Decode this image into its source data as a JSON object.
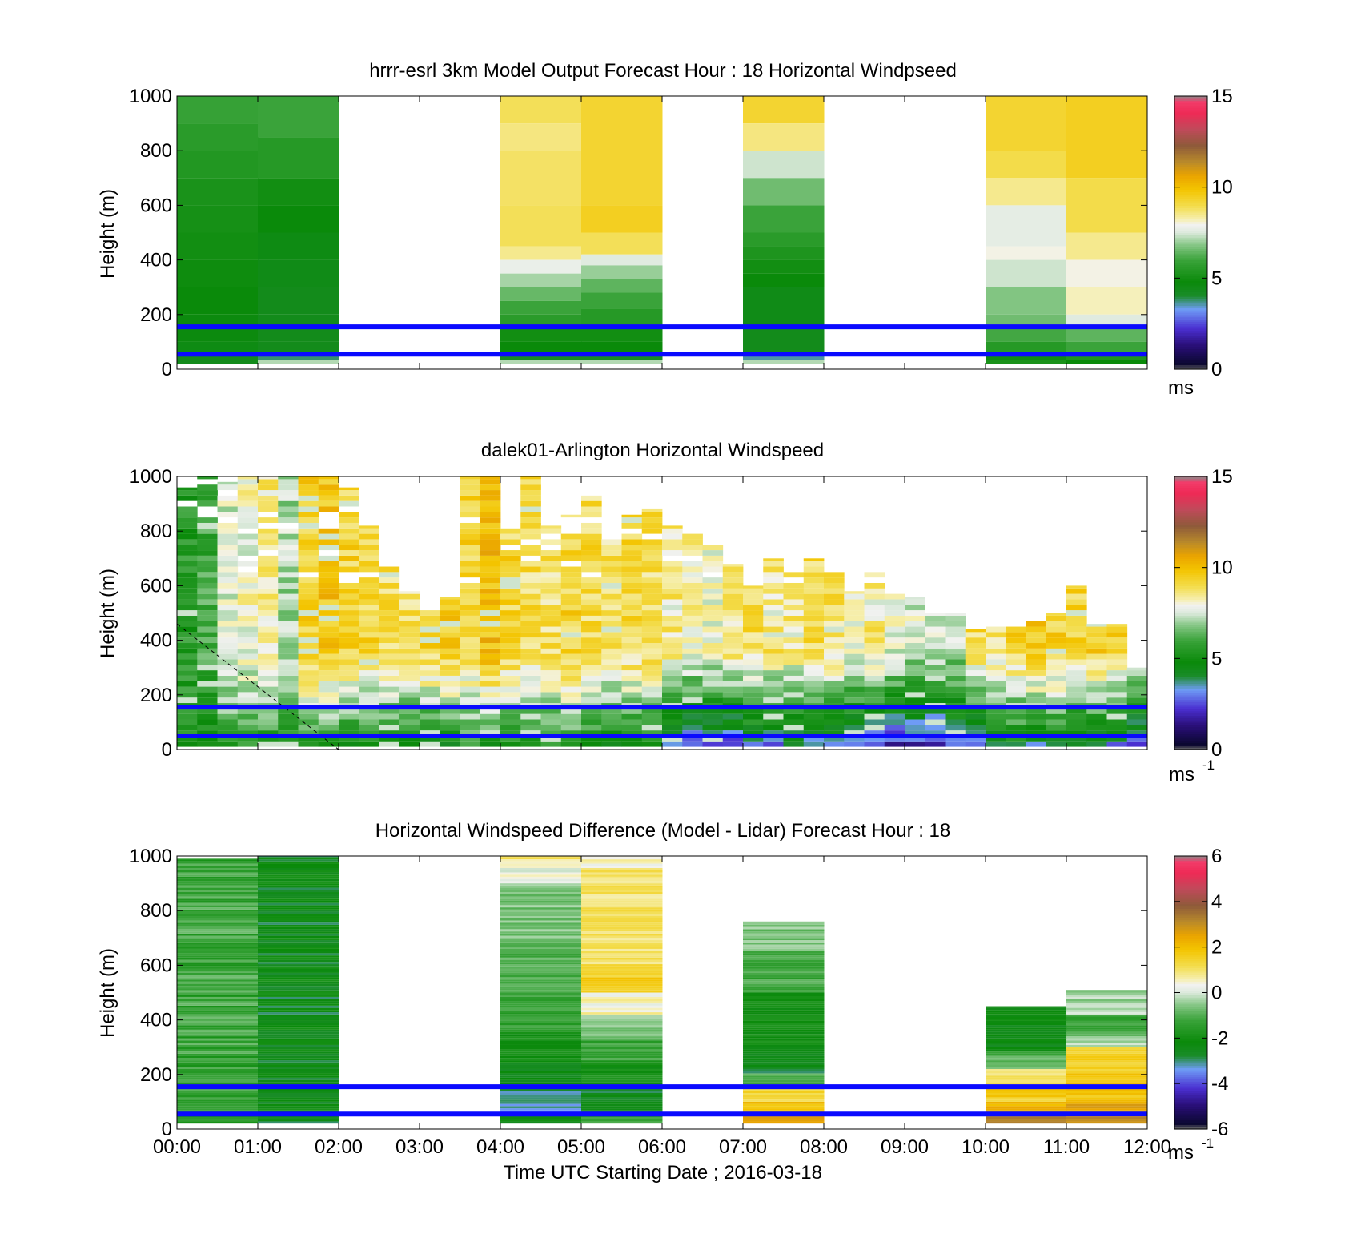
{
  "chart_data": [
    {
      "type": "heatmap",
      "title": "hrrr-esrl 3km Model Output   Forecast Hour : 18 Horizontal Windpseed",
      "ylabel": "Height (m)",
      "xlabel": "",
      "ylim": [
        0,
        1000
      ],
      "xlim": [
        "00:00",
        "12:00"
      ],
      "y_ticks": [
        "0",
        "200",
        "400",
        "600",
        "800",
        "1000"
      ],
      "x_ticks": [
        "00:00",
        "01:00",
        "02:00",
        "03:00",
        "04:00",
        "05:00",
        "06:00",
        "07:00",
        "08:00",
        "09:00",
        "10:00",
        "11:00",
        "12:00"
      ],
      "colorbar": {
        "range": [
          0,
          15
        ],
        "ticks": [
          "0",
          "5",
          "10",
          "15"
        ],
        "unit": "ms"
      },
      "blue_lines_height_m": [
        155,
        55
      ],
      "columns": [
        {
          "start": 0,
          "end": 1,
          "bottom": 20,
          "levels": [
            {
              "top": 1000,
              "v": 5.9
            },
            {
              "top": 900,
              "v": 5.6
            },
            {
              "top": 800,
              "v": 5.4
            },
            {
              "top": 700,
              "v": 5.2
            },
            {
              "top": 600,
              "v": 5.1
            },
            {
              "top": 500,
              "v": 5.0
            },
            {
              "top": 400,
              "v": 4.9
            },
            {
              "top": 300,
              "v": 4.8
            },
            {
              "top": 200,
              "v": 4.7
            },
            {
              "top": 100,
              "v": 4.6
            },
            {
              "top": 50,
              "v": 4.4
            }
          ]
        },
        {
          "start": 1,
          "end": 2,
          "bottom": 20,
          "levels": [
            {
              "top": 1000,
              "v": 6.0
            },
            {
              "top": 850,
              "v": 5.5
            },
            {
              "top": 700,
              "v": 5.0
            },
            {
              "top": 600,
              "v": 4.8
            },
            {
              "top": 500,
              "v": 4.6
            },
            {
              "top": 400,
              "v": 4.5
            },
            {
              "top": 300,
              "v": 4.4
            },
            {
              "top": 200,
              "v": 4.4
            },
            {
              "top": 100,
              "v": 4.4
            },
            {
              "top": 50,
              "v": 3.8
            },
            {
              "top": 35,
              "v": 7.2
            }
          ]
        },
        {
          "start": 4,
          "end": 5,
          "bottom": 20,
          "levels": [
            {
              "top": 1000,
              "v": 8.9
            },
            {
              "top": 900,
              "v": 8.6
            },
            {
              "top": 800,
              "v": 8.8
            },
            {
              "top": 600,
              "v": 8.9
            },
            {
              "top": 450,
              "v": 8.5
            },
            {
              "top": 400,
              "v": 7.8
            },
            {
              "top": 350,
              "v": 7.1
            },
            {
              "top": 300,
              "v": 6.5
            },
            {
              "top": 250,
              "v": 6.0
            },
            {
              "top": 200,
              "v": 5.6
            },
            {
              "top": 150,
              "v": 5.0
            },
            {
              "top": 100,
              "v": 4.8
            },
            {
              "top": 50,
              "v": 4.2
            },
            {
              "top": 35,
              "v": 7.2
            }
          ]
        },
        {
          "start": 5,
          "end": 6,
          "bottom": 20,
          "levels": [
            {
              "top": 1000,
              "v": 9.3
            },
            {
              "top": 600,
              "v": 9.5
            },
            {
              "top": 500,
              "v": 8.9
            },
            {
              "top": 420,
              "v": 7.6
            },
            {
              "top": 380,
              "v": 7.0
            },
            {
              "top": 330,
              "v": 6.4
            },
            {
              "top": 280,
              "v": 6.0
            },
            {
              "top": 220,
              "v": 5.5
            },
            {
              "top": 150,
              "v": 5.0
            },
            {
              "top": 100,
              "v": 4.8
            },
            {
              "top": 50,
              "v": 4.2
            },
            {
              "top": 35,
              "v": 7.2
            }
          ]
        },
        {
          "start": 7,
          "end": 8,
          "bottom": 20,
          "levels": [
            {
              "top": 1000,
              "v": 9.3
            },
            {
              "top": 900,
              "v": 8.6
            },
            {
              "top": 800,
              "v": 7.4
            },
            {
              "top": 700,
              "v": 6.6
            },
            {
              "top": 600,
              "v": 6.0
            },
            {
              "top": 500,
              "v": 5.6
            },
            {
              "top": 450,
              "v": 5.3
            },
            {
              "top": 400,
              "v": 5.0
            },
            {
              "top": 350,
              "v": 4.8
            },
            {
              "top": 300,
              "v": 4.5
            },
            {
              "top": 150,
              "v": 4.4
            },
            {
              "top": 50,
              "v": 3.6
            },
            {
              "top": 35,
              "v": 7.2
            }
          ]
        },
        {
          "start": 10,
          "end": 11,
          "bottom": 20,
          "levels": [
            {
              "top": 1000,
              "v": 9.3
            },
            {
              "top": 800,
              "v": 9.0
            },
            {
              "top": 700,
              "v": 8.5
            },
            {
              "top": 600,
              "v": 7.7
            },
            {
              "top": 450,
              "v": 8.0
            },
            {
              "top": 400,
              "v": 7.4
            },
            {
              "top": 300,
              "v": 6.8
            },
            {
              "top": 200,
              "v": 6.6
            },
            {
              "top": 150,
              "v": 6.1
            },
            {
              "top": 100,
              "v": 5.5
            },
            {
              "top": 50,
              "v": 4.6
            },
            {
              "top": 35,
              "v": 5.2
            }
          ]
        },
        {
          "start": 11,
          "end": 12,
          "bottom": 20,
          "levels": [
            {
              "top": 1000,
              "v": 9.5
            },
            {
              "top": 700,
              "v": 9.0
            },
            {
              "top": 500,
              "v": 8.5
            },
            {
              "top": 400,
              "v": 8.0
            },
            {
              "top": 300,
              "v": 8.2
            },
            {
              "top": 200,
              "v": 7.6
            },
            {
              "top": 150,
              "v": 6.4
            },
            {
              "top": 100,
              "v": 6.0
            },
            {
              "top": 50,
              "v": 5.3
            },
            {
              "top": 35,
              "v": 4.8
            }
          ]
        }
      ]
    },
    {
      "type": "heatmap",
      "title": "dalek01-Arlington  Horizontal Windspeed",
      "ylabel": "Height (m)",
      "xlabel": "",
      "ylim": [
        0,
        1000
      ],
      "xlim": [
        "00:00",
        "12:00"
      ],
      "y_ticks": [
        "0",
        "200",
        "400",
        "600",
        "800",
        "1000"
      ],
      "colorbar": {
        "range": [
          0,
          15
        ],
        "ticks": [
          "0",
          "5",
          "10",
          "15"
        ],
        "unit": "ms",
        "unit_exponent": "-1"
      },
      "blue_lines_height_m": [
        155,
        50
      ],
      "bin_minutes": 15,
      "bin_tops_m": [
        960,
        1000,
        980,
        1000,
        1000,
        1000,
        1000,
        1000,
        960,
        820,
        680,
        580,
        510,
        560,
        1000,
        1000,
        830,
        1000,
        820,
        860,
        930,
        780,
        860,
        880,
        820,
        800,
        750,
        680,
        600,
        700,
        650,
        700,
        650,
        580,
        650,
        570,
        560,
        500,
        500,
        440,
        450,
        450,
        470,
        500,
        600,
        460,
        460,
        300
      ],
      "bin_surface_ms": [
        5.5,
        5.3,
        5.6,
        5.8,
        5.2,
        5.0,
        4.9,
        4.9,
        4.7,
        4.6,
        4.5,
        4.4,
        4.5,
        4.6,
        5.2,
        5.0,
        4.9,
        4.8,
        5.2,
        5.3,
        4.7,
        4.6,
        4.5,
        4.4,
        2.8,
        2.4,
        2.2,
        2.0,
        3.2,
        2.6,
        3.0,
        2.5,
        3.4,
        2.7,
        2.0,
        1.8,
        1.5,
        1.6,
        2.8,
        2.2,
        3.5,
        4.0,
        3.6,
        3.8,
        3.3,
        3.5,
        3.0,
        1.6
      ],
      "bin_top_ms": [
        5.5,
        6.0,
        7.5,
        8.0,
        8.5,
        7.2,
        9.5,
        9.8,
        9.3,
        9.2,
        9.0,
        8.8,
        9.3,
        9.5,
        9.3,
        10.0,
        9.2,
        9.0,
        8.9,
        9.3,
        9.0,
        8.8,
        9.1,
        9.0,
        8.6,
        8.2,
        7.9,
        8.8,
        8.9,
        8.7,
        8.6,
        9.0,
        8.8,
        8.2,
        8.6,
        7.8,
        7.6,
        7.5,
        7.2,
        9.0,
        8.8,
        9.3,
        9.6,
        9.4,
        9.2,
        9.5,
        9.3,
        9.0
      ],
      "dashed_line": {
        "from": {
          "time": "00:00",
          "height_m": 460
        },
        "to": {
          "time": "02:00",
          "height_m": 0
        }
      }
    },
    {
      "type": "heatmap",
      "title": "Horizontal Windspeed Difference (Model - Lidar) Forecast Hour : 18",
      "ylabel": "Height (m)",
      "xlabel": "Time UTC  Starting Date ; 2016-03-18",
      "ylim": [
        0,
        1000
      ],
      "xlim": [
        "00:00",
        "12:00"
      ],
      "y_ticks": [
        "0",
        "200",
        "400",
        "600",
        "800",
        "1000"
      ],
      "x_ticks": [
        "00:00",
        "01:00",
        "02:00",
        "03:00",
        "04:00",
        "05:00",
        "06:00",
        "07:00",
        "08:00",
        "09:00",
        "10:00",
        "11:00",
        "12:00"
      ],
      "colorbar": {
        "range": [
          -6,
          6
        ],
        "ticks": [
          "-6",
          "-4",
          "-2",
          "0",
          "2",
          "4",
          "6"
        ],
        "unit": "ms",
        "unit_exponent": "-1"
      },
      "blue_lines_height_m": [
        155,
        55
      ],
      "columns": [
        {
          "start": 0,
          "end": 1,
          "bottom": 20,
          "top": 990,
          "v": -1.3
        },
        {
          "start": 1,
          "end": 2,
          "bottom": 20,
          "top": 1000,
          "v": -2.4
        },
        {
          "start": 4,
          "end": 5,
          "bottom": 20,
          "top": 1000,
          "profile": [
            {
              "top": 1000,
              "v": 0.9
            },
            {
              "top": 950,
              "v": 0.2
            },
            {
              "top": 900,
              "v": -0.6
            },
            {
              "top": 700,
              "v": -1.0
            },
            {
              "top": 500,
              "v": -1.4
            },
            {
              "top": 350,
              "v": -1.9
            },
            {
              "top": 250,
              "v": -2.5
            },
            {
              "top": 150,
              "v": -3.0
            },
            {
              "top": 50,
              "v": -2.4
            }
          ]
        },
        {
          "start": 5,
          "end": 6,
          "bottom": 20,
          "top": 1000,
          "profile": [
            {
              "top": 1000,
              "v": 0.4
            },
            {
              "top": 950,
              "v": 1.0
            },
            {
              "top": 600,
              "v": 1.6
            },
            {
              "top": 500,
              "v": 0.5
            },
            {
              "top": 420,
              "v": -0.5
            },
            {
              "top": 330,
              "v": -1.3
            },
            {
              "top": 250,
              "v": -2.0
            },
            {
              "top": 150,
              "v": -2.6
            },
            {
              "top": 50,
              "v": -1.2
            }
          ]
        },
        {
          "start": 7,
          "end": 8,
          "bottom": 20,
          "top": 760,
          "profile": [
            {
              "top": 760,
              "v": -0.6
            },
            {
              "top": 650,
              "v": -1.2
            },
            {
              "top": 500,
              "v": -2.0
            },
            {
              "top": 300,
              "v": -2.6
            },
            {
              "top": 200,
              "v": -1.0
            },
            {
              "top": 150,
              "v": 1.4
            },
            {
              "top": 100,
              "v": 2.0
            },
            {
              "top": 50,
              "v": 2.7
            }
          ]
        },
        {
          "start": 10,
          "end": 11,
          "bottom": 20,
          "top": 450,
          "profile": [
            {
              "top": 450,
              "v": -2.3
            },
            {
              "top": 350,
              "v": -2.4
            },
            {
              "top": 280,
              "v": -1.0
            },
            {
              "top": 220,
              "v": 1.0
            },
            {
              "top": 150,
              "v": 1.6
            },
            {
              "top": 100,
              "v": 2.2
            },
            {
              "top": 50,
              "v": 3.2
            }
          ]
        },
        {
          "start": 11,
          "end": 12,
          "bottom": 20,
          "top": 510,
          "profile": [
            {
              "top": 510,
              "v": -0.3
            },
            {
              "top": 420,
              "v": -1.2
            },
            {
              "top": 340,
              "v": -0.3
            },
            {
              "top": 300,
              "v": 1.6
            },
            {
              "top": 200,
              "v": 1.9
            },
            {
              "top": 100,
              "v": 2.4
            },
            {
              "top": 50,
              "v": 2.9
            }
          ]
        }
      ]
    }
  ]
}
